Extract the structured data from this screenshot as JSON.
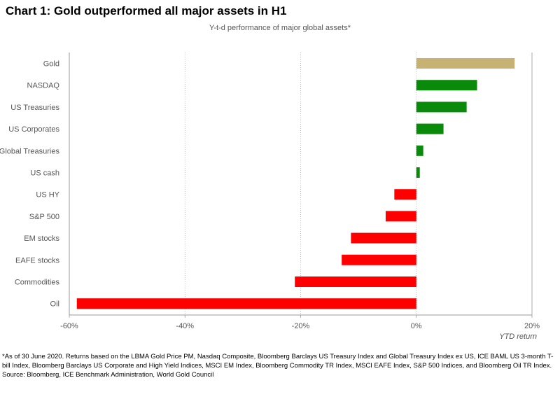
{
  "title": "Chart 1: Gold outperformed all major assets in H1",
  "subtitle": "Y-t-d performance of major global assets*",
  "chart_data": {
    "type": "bar",
    "orientation": "horizontal",
    "categories": [
      "Gold",
      "NASDAQ",
      "US Treasuries",
      "US Corporates",
      "Global Treasuries",
      "US cash",
      "US HY",
      "S&P 500",
      "EM stocks",
      "EAFE stocks",
      "Commodities",
      "Oil"
    ],
    "values": [
      17.0,
      10.5,
      8.7,
      4.7,
      1.2,
      0.6,
      -3.8,
      -5.3,
      -11.3,
      -12.9,
      -21.0,
      -58.7
    ],
    "xlim": [
      -60,
      20
    ],
    "xticks": [
      -60,
      -40,
      -20,
      0,
      20
    ],
    "xtick_labels": [
      "-60%",
      "-40%",
      "-20%",
      "0%",
      "20%"
    ],
    "xlabel": "YTD return",
    "ylabel": "",
    "grid": "vertical dotted",
    "colors": {
      "gold": "#c8b273",
      "positive": "#0a8a0a",
      "negative": "#ff0000",
      "axis": "#999999",
      "grid": "#aaaaaa"
    },
    "bar_colors": [
      "gold",
      "positive",
      "positive",
      "positive",
      "positive",
      "positive",
      "negative",
      "negative",
      "negative",
      "negative",
      "negative",
      "negative"
    ]
  },
  "footnote": {
    "note": "*As of 30 June 2020. Returns based on the LBMA Gold Price PM, Nasdaq Composite, Bloomberg Barclays US Treasury Index and Global Treasury Index ex US, ICE BAML US 3-month T-bill Index, Bloomberg Barclays US Corporate and High Yield Indices, MSCI EM Index, Bloomberg Commodity TR Index, MSCI EAFE Index, S&P 500 Indices, and Bloomberg Oil TR Index.",
    "source": "Source: Bloomberg, ICE Benchmark Administration, World Gold Council"
  }
}
